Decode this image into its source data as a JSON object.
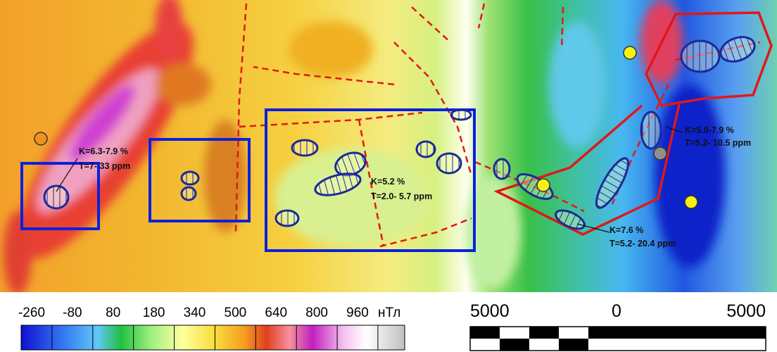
{
  "annotations": [
    {
      "lines": [
        "K=6.3-7.9 %",
        "T=7- 33 ppm"
      ]
    },
    {
      "lines": [
        "K=5.2 %",
        "T=2.0- 5.7 ppm"
      ]
    },
    {
      "lines": [
        "K=5.0-7.9 %",
        "T=5.2- 10.5 ppm"
      ]
    },
    {
      "lines": [
        "K=7.6 %",
        "T=5.2- 20.4 ppm"
      ]
    }
  ],
  "legend": {
    "ticks": [
      -260,
      -80,
      80,
      180,
      340,
      500,
      640,
      800,
      960
    ],
    "unit": "нТл"
  },
  "scale_bar": {
    "labels": [
      5000,
      0,
      5000
    ]
  }
}
